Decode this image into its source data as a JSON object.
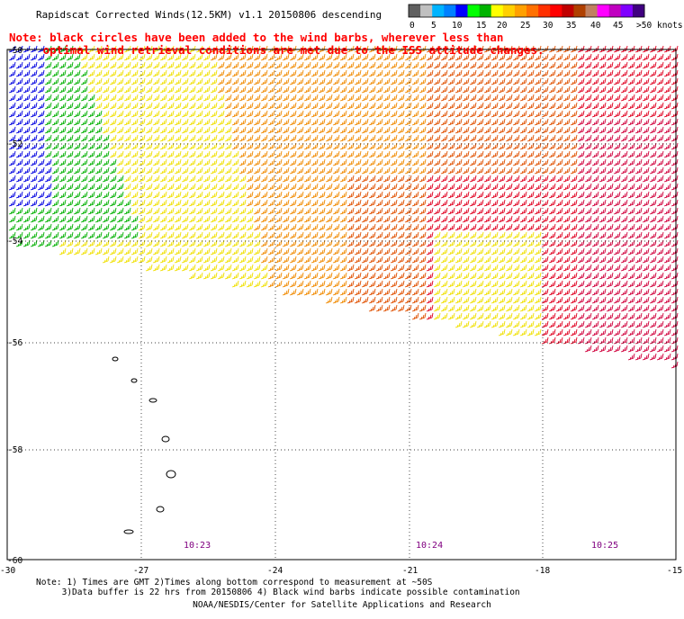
{
  "title": "Rapidscat Corrected Winds(12.5KM) v1.1 20150806 descending",
  "note": {
    "line1": "Note: black circles have been added to the wind barbs, wherever less than",
    "line2": "     optimal wind retrieval conditions are met due to the ISS attitude changes."
  },
  "speed_scale": {
    "unit": "knots",
    "labels": [
      "0",
      "5",
      "10",
      "15",
      "20",
      "25",
      "30",
      "35",
      "40",
      "45",
      ">50"
    ],
    "unit_label": "knots",
    "colors": [
      "#606060",
      "#c0c0c0",
      "#00b4ff",
      "#0080ff",
      "#0000ff",
      "#00ff00",
      "#00b400",
      "#ffff00",
      "#ffd000",
      "#ffa000",
      "#ff7000",
      "#ff3000",
      "#ff0000",
      "#c00000",
      "#b04000",
      "#c08060",
      "#ff00ff",
      "#c000c0",
      "#8000ff",
      "#400080"
    ]
  },
  "map": {
    "lat_labels": [
      "-50",
      "-52",
      "-54",
      "-56",
      "-58",
      "-60"
    ],
    "lon_labels": [
      "-30",
      "-27",
      "-24",
      "-21",
      "-18",
      "-15"
    ],
    "time_labels": [
      "10:23",
      "10:24",
      "10:25"
    ],
    "barb_colors": {
      "blue": "#0000e0",
      "green": "#00b000",
      "yellow": "#f0e000",
      "orange": "#f08a00",
      "dark_orange": "#e05000",
      "red": "#e00020",
      "crimson": "#d0003c"
    },
    "coast_color": "#000000"
  },
  "footer": {
    "line1": "Note: 1) Times are GMT 2)Times along bottom correspond to measurement at ~50S",
    "line2": "     3)Data buffer is 22 hrs from 20150806 4) Black wind barbs indicate possible contamination",
    "credit": "NOAA/NESDIS/Center for Satellite Applications and Research"
  }
}
